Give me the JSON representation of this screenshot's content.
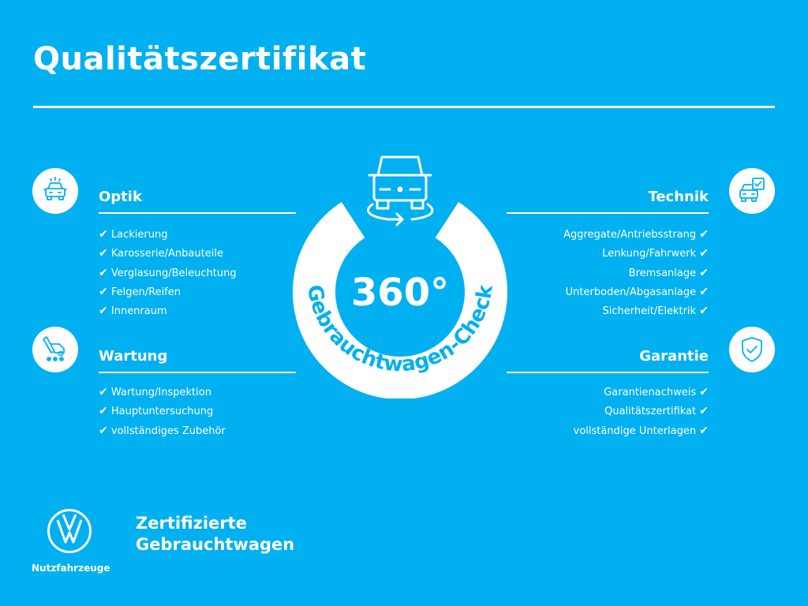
{
  "title": "Qualitätszertifikat",
  "colors": {
    "background": "#00b0f0",
    "foreground": "#ffffff"
  },
  "check_symbol": "✔",
  "center": {
    "degrees": "360°",
    "arc_text": "Gebrauchtwagen-Check",
    "icon": "car-360-rotate-icon"
  },
  "sections": {
    "optik": {
      "title": "Optik",
      "icon": "car-lights-icon",
      "items": [
        "Lackierung",
        "Karosserie/Anbauteile",
        "Verglasung/Beleuchtung",
        "Felgen/Reifen",
        "Innenraum"
      ]
    },
    "wartung": {
      "title": "Wartung",
      "icon": "service-wrench-car-icon",
      "items": [
        "Wartung/Inspektion",
        "Hauptuntersuchung",
        "vollständiges Zubehör"
      ]
    },
    "technik": {
      "title": "Technik",
      "icon": "car-checklist-icon",
      "items": [
        "Aggregate/Antriebsstrang",
        "Lenkung/Fahrwerk",
        "Bremsanlage",
        "Unterboden/Abgasanlage",
        "Sicherheit/Elektrik"
      ]
    },
    "garantie": {
      "title": "Garantie",
      "icon": "shield-check-icon",
      "items": [
        "Garantienachweis",
        "Qualitätszertifikat",
        "vollständige Unterlagen"
      ]
    }
  },
  "footer": {
    "logo": "VW",
    "logo_caption": "Nutzfahrzeuge",
    "line1": "Zertifizierte",
    "line2": "Gebrauchtwagen"
  }
}
